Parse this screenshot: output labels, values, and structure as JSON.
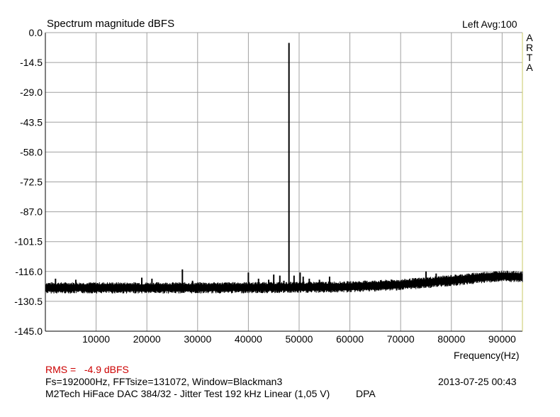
{
  "header": {
    "title": "Spectrum magnitude dBFS",
    "channel_avg": "Left  Avg:100",
    "brand_letters": [
      "A",
      "R",
      "T",
      "A"
    ]
  },
  "footer": {
    "rms_label": "RMS =",
    "rms_value": "-4.9 dBFS",
    "params": "Fs=192000Hz, FFTsize=131072, Window=Blackman3",
    "timestamp": "2013-07-25  00:43",
    "device": "M2Tech HiFace DAC 384/32 - Jitter Test 192 kHz Linear (1,05 V)",
    "tag": "DPA"
  },
  "colors": {
    "grid": "#a0a0a0",
    "frame": "#000000",
    "right_frame": "#c8c864",
    "trace": "#000000",
    "rms": "#cc0000"
  },
  "chart_data": {
    "type": "line",
    "title": "Spectrum magnitude dBFS",
    "xlabel": "Frequency(Hz)",
    "ylabel": "",
    "xlim": [
      0,
      94000
    ],
    "ylim": [
      -145.0,
      0.0
    ],
    "grid": true,
    "x_ticks": [
      "10000",
      "20000",
      "30000",
      "40000",
      "50000",
      "60000",
      "70000",
      "80000",
      "90000"
    ],
    "y_ticks": [
      "0.0",
      "-14.5",
      "-29.0",
      "-43.5",
      "-58.0",
      "-72.5",
      "-87.0",
      "-101.5",
      "-116.0",
      "-130.5",
      "-145.0"
    ],
    "noise_floor": [
      {
        "x": 0,
        "y": -124
      },
      {
        "x": 10000,
        "y": -124
      },
      {
        "x": 30000,
        "y": -124
      },
      {
        "x": 50000,
        "y": -123.8
      },
      {
        "x": 60000,
        "y": -123.5
      },
      {
        "x": 70000,
        "y": -122.5
      },
      {
        "x": 76000,
        "y": -121.3
      },
      {
        "x": 82000,
        "y": -120
      },
      {
        "x": 86000,
        "y": -119
      },
      {
        "x": 90000,
        "y": -118.3
      },
      {
        "x": 94000,
        "y": -118.8
      }
    ],
    "peaks": [
      {
        "x": 2000,
        "y": -119.5
      },
      {
        "x": 6000,
        "y": -120
      },
      {
        "x": 19000,
        "y": -119
      },
      {
        "x": 21000,
        "y": -119.5
      },
      {
        "x": 27000,
        "y": -115
      },
      {
        "x": 29000,
        "y": -120.5
      },
      {
        "x": 40000,
        "y": -116.5
      },
      {
        "x": 42000,
        "y": -119.5
      },
      {
        "x": 44000,
        "y": -120
      },
      {
        "x": 45000,
        "y": -117.5
      },
      {
        "x": 46200,
        "y": -118
      },
      {
        "x": 47000,
        "y": -120.5
      },
      {
        "x": 48000,
        "y": -5
      },
      {
        "x": 49000,
        "y": -118
      },
      {
        "x": 50200,
        "y": -116.5
      },
      {
        "x": 50800,
        "y": -118.5
      },
      {
        "x": 52000,
        "y": -119.5
      },
      {
        "x": 54000,
        "y": -120
      },
      {
        "x": 56000,
        "y": -118.5
      },
      {
        "x": 75000,
        "y": -116
      },
      {
        "x": 77000,
        "y": -117
      }
    ]
  }
}
